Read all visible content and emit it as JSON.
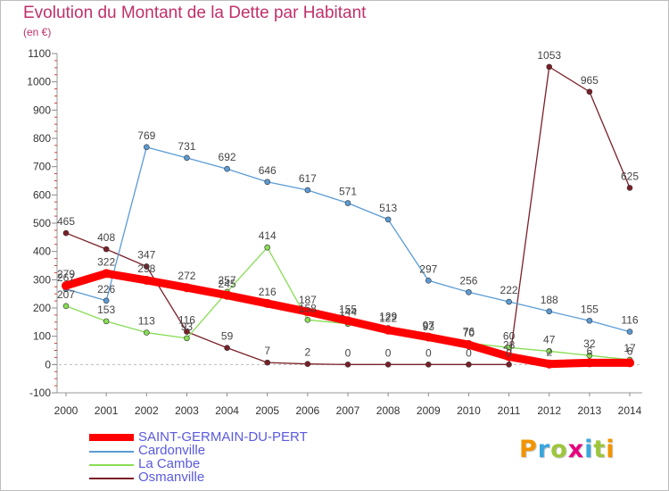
{
  "title": "Evolution du Montant de la Dette par Habitant",
  "subtitle": "(en €)",
  "logo": {
    "text": "Proxiti",
    "letter_colors": [
      "#f29400",
      "#3aa6dd",
      "#9dc63c",
      "#e6007e",
      "#3aa6dd",
      "#9dc63c",
      "#f29400"
    ]
  },
  "chart_data": {
    "type": "line",
    "title": "Evolution du Montant de la Dette par Habitant",
    "subtitle": "(en €)",
    "x": [
      "2000",
      "2001",
      "2002",
      "2003",
      "2004",
      "2005",
      "2006",
      "2007",
      "2008",
      "2009",
      "2010",
      "2011",
      "2012",
      "2013",
      "2014"
    ],
    "yticks": [
      -100,
      0,
      100,
      200,
      300,
      400,
      500,
      600,
      700,
      800,
      900,
      1000,
      1100
    ],
    "ylim": [
      -100,
      1100
    ],
    "grid": false,
    "legend_position": "bottom-left",
    "series": [
      {
        "name": "SAINT-GERMAIN-DU-PERT",
        "color": "#ff0000",
        "values": [
          279,
          322,
          298,
          272,
          245,
          216,
          187,
          155,
          122,
          97,
          70,
          28,
          2,
          6,
          6
        ]
      },
      {
        "name": "Cardonville",
        "color": "#5b9bd5",
        "values": [
          267,
          226,
          769,
          731,
          692,
          646,
          617,
          571,
          513,
          297,
          256,
          222,
          188,
          155,
          116
        ]
      },
      {
        "name": "La Cambe",
        "color": "#88dd55",
        "values": [
          207,
          153,
          113,
          93,
          257,
          414,
          158,
          144,
          129,
          93,
          76,
          60,
          47,
          32,
          17
        ]
      },
      {
        "name": "Osmanville",
        "color": "#7a1f28",
        "values": [
          465,
          408,
          347,
          116,
          59,
          7,
          2,
          0,
          0,
          0,
          0,
          0,
          1053,
          965,
          625
        ]
      }
    ]
  }
}
